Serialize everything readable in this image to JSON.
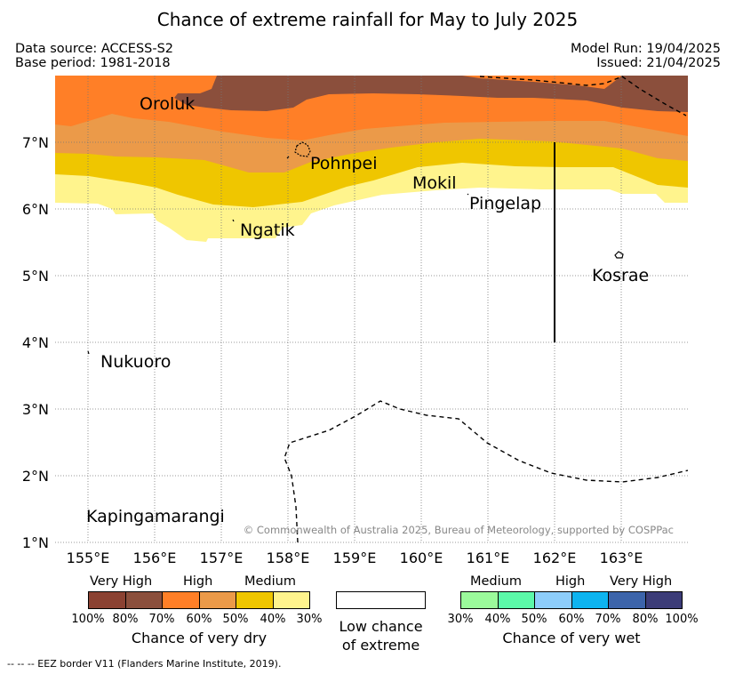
{
  "title": "Chance of extreme rainfall for May to July 2025",
  "info": {
    "data_source": "Data source: ACCESS-S2",
    "base_period": "Base period: 1981-2018",
    "model_run": "Model Run: 19/04/2025",
    "issued": "Issued: 21/04/2025"
  },
  "map": {
    "lat_labels": [
      "7°N",
      "6°N",
      "5°N",
      "4°N",
      "3°N",
      "2°N",
      "1°N"
    ],
    "lon_labels": [
      "155°E",
      "156°E",
      "157°E",
      "158°E",
      "159°E",
      "160°E",
      "161°E",
      "162°E",
      "163°E"
    ],
    "places": {
      "oroluk": "Oroluk",
      "pohnpei": "Pohnpei",
      "mokil": "Mokil",
      "pingelap": "Pingelap",
      "ngatik": "Ngatik",
      "kosrae": "Kosrae",
      "nukuoro": "Nukuoro",
      "kapingamarangi": "Kapingamarangi"
    },
    "copyright": "© Commonwealth of Australia 2025, Bureau of Meteorology, supported by COSPPac"
  },
  "legend": {
    "dry": {
      "categories": [
        "Very High",
        "High",
        "Medium"
      ],
      "colors": [
        "#8b4232",
        "#8b4f3c",
        "#ff7f27",
        "#eb9a49",
        "#efc600",
        "#fff48d"
      ],
      "ticks": [
        "100%",
        "80%",
        "70%",
        "60%",
        "50%",
        "40%",
        "30%"
      ],
      "title": "Chance of very dry"
    },
    "low": {
      "title_line1": "Low chance",
      "title_line2": "of extreme"
    },
    "wet": {
      "categories": [
        "Medium",
        "High",
        "Very High"
      ],
      "colors": [
        "#9bfa9b",
        "#5cf9a9",
        "#8dcdfa",
        "#0db4f0",
        "#3c64aa",
        "#3c3c78"
      ],
      "ticks": [
        "30%",
        "40%",
        "50%",
        "60%",
        "70%",
        "80%",
        "100%"
      ],
      "title": "Chance of very wet"
    }
  },
  "footnote": "-- -- -- EEZ border V11 (Flanders Marine Institute, 2019)."
}
